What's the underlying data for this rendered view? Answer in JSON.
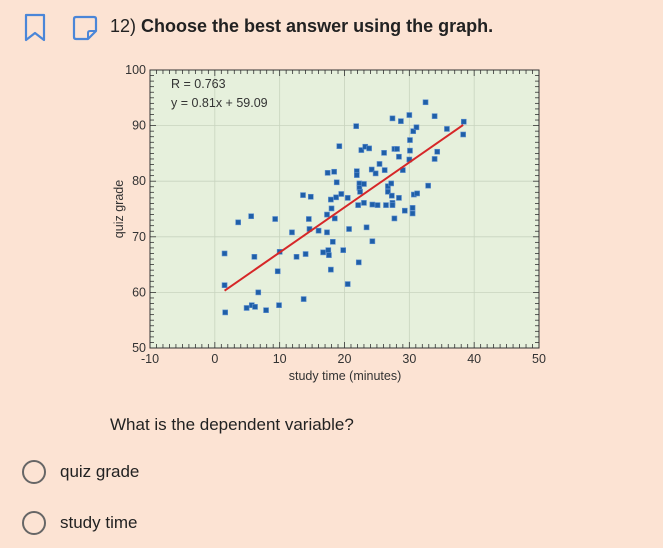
{
  "header": {
    "number": "12)",
    "title": "Choose the best answer using the graph."
  },
  "question": "What is the dependent variable?",
  "options": [
    {
      "label": "quiz grade"
    },
    {
      "label": "study time"
    }
  ],
  "colors": {
    "accent": "#4a86d8",
    "background": "#fce3d3",
    "plot_bg": "#e6f0dc",
    "point": "#1f5fa8",
    "fit_line": "#d62728"
  },
  "chart_data": {
    "type": "scatter",
    "xlabel": "study time (minutes)",
    "ylabel": "quiz grade",
    "xlim": [
      -10,
      50
    ],
    "ylim": [
      50,
      100
    ],
    "xticks": [
      -10,
      0,
      10,
      20,
      30,
      40,
      50
    ],
    "yticks": [
      50,
      60,
      70,
      80,
      90,
      100
    ],
    "grid": true,
    "annotations": [
      "R = 0.763",
      "y = 0.81x + 59.09"
    ],
    "fit": {
      "slope": 0.81,
      "intercept": 59.09,
      "x_range": [
        1.5,
        38.3
      ]
    },
    "points": [
      [
        1.5,
        67.0
      ],
      [
        1.5,
        61.3
      ],
      [
        1.6,
        56.4
      ],
      [
        3.6,
        72.6
      ],
      [
        5.6,
        73.7
      ],
      [
        6.1,
        66.4
      ],
      [
        6.7,
        60.0
      ],
      [
        4.9,
        57.2
      ],
      [
        5.7,
        57.7
      ],
      [
        6.2,
        57.4
      ],
      [
        7.9,
        56.8
      ],
      [
        9.3,
        73.2
      ],
      [
        9.7,
        63.8
      ],
      [
        10.0,
        67.3
      ],
      [
        9.9,
        57.7
      ],
      [
        11.9,
        70.8
      ],
      [
        12.6,
        66.4
      ],
      [
        13.6,
        77.5
      ],
      [
        14.8,
        77.2
      ],
      [
        14.5,
        73.2
      ],
      [
        14.6,
        71.4
      ],
      [
        14.0,
        66.9
      ],
      [
        13.7,
        58.8
      ],
      [
        16.0,
        71.1
      ],
      [
        16.7,
        67.2
      ],
      [
        17.4,
        81.5
      ],
      [
        18.4,
        81.7
      ],
      [
        17.3,
        74.0
      ],
      [
        17.3,
        70.8
      ],
      [
        17.5,
        67.6
      ],
      [
        17.6,
        66.7
      ],
      [
        17.9,
        64.1
      ],
      [
        17.9,
        76.7
      ],
      [
        18.0,
        75.1
      ],
      [
        18.2,
        69.1
      ],
      [
        18.5,
        73.3
      ],
      [
        18.7,
        77.1
      ],
      [
        18.8,
        79.8
      ],
      [
        19.2,
        86.3
      ],
      [
        19.5,
        77.7
      ],
      [
        19.8,
        67.6
      ],
      [
        20.5,
        77.0
      ],
      [
        20.5,
        61.5
      ],
      [
        20.7,
        71.4
      ],
      [
        21.8,
        89.9
      ],
      [
        21.9,
        81.8
      ],
      [
        21.9,
        81.1
      ],
      [
        22.3,
        79.6
      ],
      [
        22.3,
        78.8
      ],
      [
        22.4,
        78.1
      ],
      [
        22.1,
        75.7
      ],
      [
        22.2,
        65.4
      ],
      [
        22.6,
        85.6
      ],
      [
        23.2,
        86.2
      ],
      [
        23.0,
        79.5
      ],
      [
        23.0,
        76.1
      ],
      [
        23.4,
        71.7
      ],
      [
        23.8,
        85.9
      ],
      [
        24.3,
        69.2
      ],
      [
        24.2,
        82.1
      ],
      [
        24.8,
        81.4
      ],
      [
        24.3,
        75.8
      ],
      [
        25.1,
        75.7
      ],
      [
        25.4,
        83.1
      ],
      [
        26.1,
        85.1
      ],
      [
        26.2,
        82.0
      ],
      [
        26.4,
        75.7
      ],
      [
        26.7,
        79.1
      ],
      [
        26.7,
        78.1
      ],
      [
        27.2,
        79.6
      ],
      [
        27.4,
        91.3
      ],
      [
        27.7,
        85.8
      ],
      [
        28.1,
        85.8
      ],
      [
        27.3,
        77.4
      ],
      [
        27.4,
        76.1
      ],
      [
        27.4,
        75.7
      ],
      [
        27.7,
        73.3
      ],
      [
        28.4,
        84.4
      ],
      [
        28.4,
        77.0
      ],
      [
        28.7,
        90.8
      ],
      [
        29.0,
        82.0
      ],
      [
        29.3,
        74.7
      ],
      [
        30.0,
        91.9
      ],
      [
        30.1,
        87.4
      ],
      [
        30.1,
        85.5
      ],
      [
        30.0,
        83.9
      ],
      [
        30.5,
        75.2
      ],
      [
        30.5,
        74.2
      ],
      [
        30.6,
        89.0
      ],
      [
        31.1,
        89.7
      ],
      [
        30.7,
        77.6
      ],
      [
        31.2,
        77.8
      ],
      [
        32.5,
        94.2
      ],
      [
        32.9,
        79.2
      ],
      [
        33.9,
        91.7
      ],
      [
        33.9,
        84.0
      ],
      [
        34.3,
        85.3
      ],
      [
        35.8,
        89.4
      ],
      [
        38.4,
        90.7
      ],
      [
        38.3,
        88.4
      ]
    ]
  }
}
